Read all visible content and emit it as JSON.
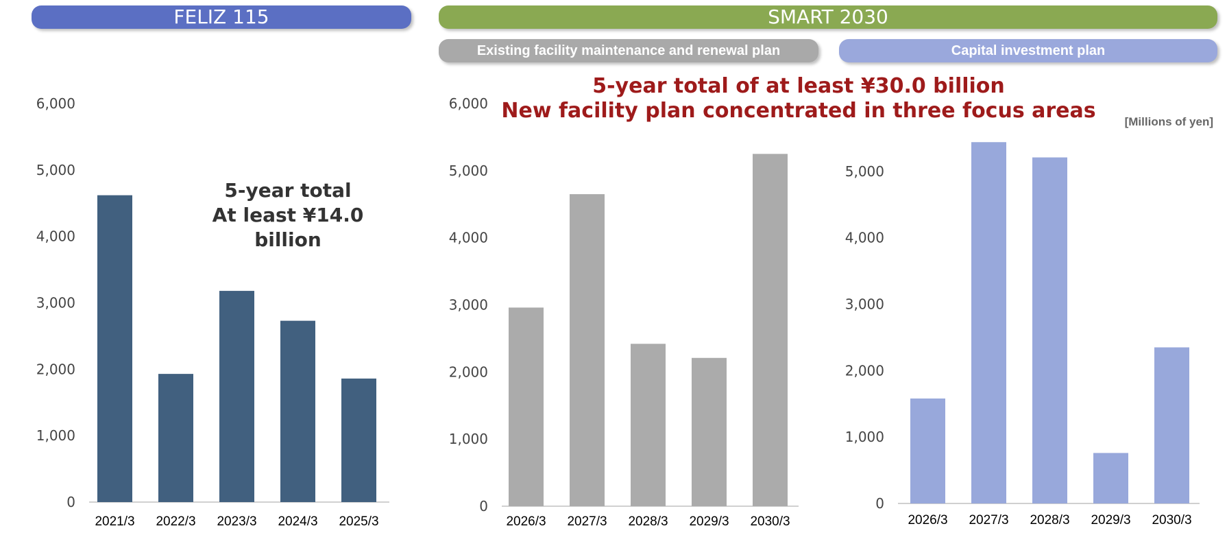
{
  "headers": {
    "feliz": "FELIZ 115",
    "smart": "SMART 2030",
    "existing": "Existing facility maintenance and renewal plan",
    "capital": "Capital investment plan"
  },
  "headline": {
    "line1": "5-year total of at least ¥30.0 billion",
    "line2": "New facility plan concentrated in three focus areas"
  },
  "unit_label": "[Millions of yen]",
  "feliz_note": {
    "line1": "5-year total",
    "line2": "At least ¥14.0 billion"
  },
  "colors": {
    "feliz": "#41607f",
    "existing": "#ababab",
    "capital": "#98a8db",
    "axis": "#d0d0d0"
  },
  "chart_data": [
    {
      "type": "bar",
      "title": "FELIZ 115",
      "categories": [
        "2021/3",
        "2022/3",
        "2023/3",
        "2024/3",
        "2025/3"
      ],
      "values": [
        4620,
        1930,
        3180,
        2730,
        1860
      ],
      "yticks": [
        "0",
        "1,000",
        "2,000",
        "3,000",
        "4,000",
        "5,000",
        "6,000"
      ],
      "ylim": [
        0,
        6000
      ],
      "color_key": "feliz"
    },
    {
      "type": "bar",
      "title": "Existing facility maintenance and renewal plan",
      "categories": [
        "2026/3",
        "2027/3",
        "2028/3",
        "2029/3",
        "2030/3"
      ],
      "values": [
        2960,
        4650,
        2420,
        2210,
        5250
      ],
      "yticks": [
        "0",
        "1,000",
        "2,000",
        "3,000",
        "4,000",
        "5,000",
        "6,000"
      ],
      "ylim": [
        0,
        6000
      ],
      "color_key": "existing"
    },
    {
      "type": "bar",
      "title": "Capital investment plan",
      "categories": [
        "2026/3",
        "2027/3",
        "2028/3",
        "2029/3",
        "2030/3"
      ],
      "values": [
        1580,
        5440,
        5210,
        760,
        2350
      ],
      "yticks": [
        "0",
        "1,000",
        "2,000",
        "3,000",
        "4,000",
        "5,000"
      ],
      "ylim": [
        0,
        6000
      ],
      "color_key": "capital"
    }
  ]
}
